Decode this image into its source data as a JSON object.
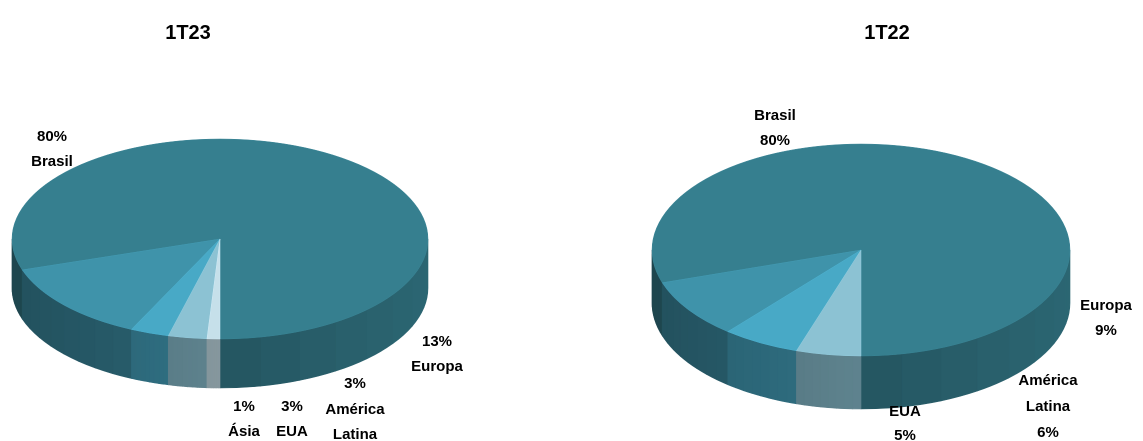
{
  "chart_data": [
    {
      "type": "pie",
      "title": "1T23",
      "slices": [
        {
          "label": "Brasil",
          "value": 80,
          "value_text": "80%",
          "color": "#367f8f"
        },
        {
          "label": "Europa",
          "value": 13,
          "value_text": "13%",
          "color": "#3f93aa"
        },
        {
          "label": "América Latina",
          "label_lines": [
            "América",
            "Latina"
          ],
          "value": 3,
          "value_text": "3%",
          "color": "#48a9c6"
        },
        {
          "label": "EUA",
          "value": 3,
          "value_text": "3%",
          "color": "#8cc2d3"
        },
        {
          "label": "Ásia",
          "value": 1,
          "value_text": "1%",
          "color": "#c6e0ea"
        }
      ]
    },
    {
      "type": "pie",
      "title": "1T22",
      "slices": [
        {
          "label": "Brasil",
          "value": 80,
          "value_text": "80%",
          "color": "#367f8f"
        },
        {
          "label": "Europa",
          "value": 9,
          "value_text": "9%",
          "color": "#3f93aa"
        },
        {
          "label": "América Latina",
          "label_lines": [
            "América",
            "Latina"
          ],
          "value": 6,
          "value_text": "6%",
          "color": "#48a9c6"
        },
        {
          "label": "EUA",
          "value": 5,
          "value_text": "5%",
          "color": "#8cc2d3"
        }
      ]
    }
  ]
}
